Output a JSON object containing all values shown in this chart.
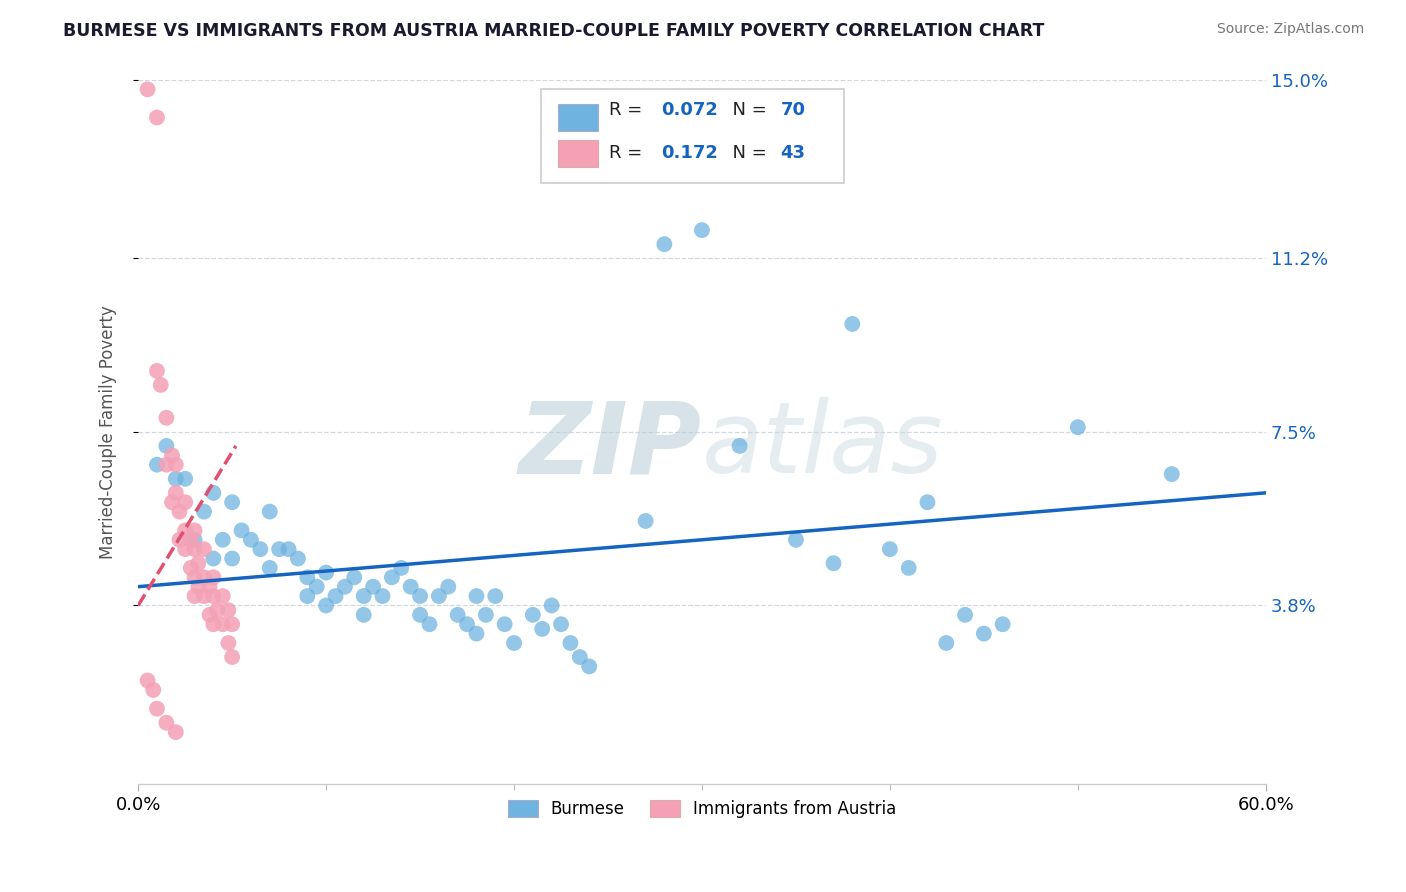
{
  "title": "BURMESE VS IMMIGRANTS FROM AUSTRIA MARRIED-COUPLE FAMILY POVERTY CORRELATION CHART",
  "source": "Source: ZipAtlas.com",
  "ylabel": "Married-Couple Family Poverty",
  "xlim": [
    0.0,
    0.6
  ],
  "ylim": [
    0.0,
    0.15
  ],
  "xtick_vals": [
    0.0,
    0.6
  ],
  "xtick_labels": [
    "0.0%",
    "60.0%"
  ],
  "ytick_vals": [
    0.038,
    0.075,
    0.112,
    0.15
  ],
  "ytick_labels": [
    "3.8%",
    "7.5%",
    "11.2%",
    "15.0%"
  ],
  "legend1_label": "Burmese",
  "legend2_label": "Immigrants from Austria",
  "R1": "0.072",
  "N1": "70",
  "R2": "0.172",
  "N2": "43",
  "blue_color": "#6fb3e0",
  "pink_color": "#f4a0b5",
  "trend_blue": "#1565c0",
  "trend_pink": "#e05070",
  "watermark_color": "#d0dde8",
  "blue_dots": [
    [
      0.01,
      0.068
    ],
    [
      0.015,
      0.072
    ],
    [
      0.02,
      0.065
    ],
    [
      0.025,
      0.065
    ],
    [
      0.03,
      0.052
    ],
    [
      0.035,
      0.058
    ],
    [
      0.04,
      0.062
    ],
    [
      0.04,
      0.048
    ],
    [
      0.045,
      0.052
    ],
    [
      0.05,
      0.06
    ],
    [
      0.05,
      0.048
    ],
    [
      0.055,
      0.054
    ],
    [
      0.06,
      0.052
    ],
    [
      0.065,
      0.05
    ],
    [
      0.07,
      0.058
    ],
    [
      0.07,
      0.046
    ],
    [
      0.075,
      0.05
    ],
    [
      0.08,
      0.05
    ],
    [
      0.085,
      0.048
    ],
    [
      0.09,
      0.044
    ],
    [
      0.09,
      0.04
    ],
    [
      0.095,
      0.042
    ],
    [
      0.1,
      0.045
    ],
    [
      0.1,
      0.038
    ],
    [
      0.105,
      0.04
    ],
    [
      0.11,
      0.042
    ],
    [
      0.115,
      0.044
    ],
    [
      0.12,
      0.04
    ],
    [
      0.12,
      0.036
    ],
    [
      0.125,
      0.042
    ],
    [
      0.13,
      0.04
    ],
    [
      0.135,
      0.044
    ],
    [
      0.14,
      0.046
    ],
    [
      0.145,
      0.042
    ],
    [
      0.15,
      0.04
    ],
    [
      0.15,
      0.036
    ],
    [
      0.155,
      0.034
    ],
    [
      0.16,
      0.04
    ],
    [
      0.165,
      0.042
    ],
    [
      0.17,
      0.036
    ],
    [
      0.175,
      0.034
    ],
    [
      0.18,
      0.04
    ],
    [
      0.18,
      0.032
    ],
    [
      0.185,
      0.036
    ],
    [
      0.19,
      0.04
    ],
    [
      0.195,
      0.034
    ],
    [
      0.2,
      0.03
    ],
    [
      0.21,
      0.036
    ],
    [
      0.215,
      0.033
    ],
    [
      0.22,
      0.038
    ],
    [
      0.225,
      0.034
    ],
    [
      0.23,
      0.03
    ],
    [
      0.235,
      0.027
    ],
    [
      0.24,
      0.025
    ],
    [
      0.27,
      0.056
    ],
    [
      0.28,
      0.115
    ],
    [
      0.3,
      0.118
    ],
    [
      0.32,
      0.072
    ],
    [
      0.35,
      0.052
    ],
    [
      0.37,
      0.047
    ],
    [
      0.38,
      0.098
    ],
    [
      0.4,
      0.05
    ],
    [
      0.41,
      0.046
    ],
    [
      0.42,
      0.06
    ],
    [
      0.43,
      0.03
    ],
    [
      0.44,
      0.036
    ],
    [
      0.45,
      0.032
    ],
    [
      0.46,
      0.034
    ],
    [
      0.5,
      0.076
    ],
    [
      0.55,
      0.066
    ]
  ],
  "pink_dots": [
    [
      0.005,
      0.148
    ],
    [
      0.01,
      0.142
    ],
    [
      0.01,
      0.088
    ],
    [
      0.012,
      0.085
    ],
    [
      0.015,
      0.078
    ],
    [
      0.015,
      0.068
    ],
    [
      0.018,
      0.07
    ],
    [
      0.018,
      0.06
    ],
    [
      0.02,
      0.068
    ],
    [
      0.02,
      0.062
    ],
    [
      0.022,
      0.058
    ],
    [
      0.022,
      0.052
    ],
    [
      0.025,
      0.06
    ],
    [
      0.025,
      0.054
    ],
    [
      0.025,
      0.05
    ],
    [
      0.028,
      0.052
    ],
    [
      0.028,
      0.046
    ],
    [
      0.03,
      0.054
    ],
    [
      0.03,
      0.05
    ],
    [
      0.03,
      0.044
    ],
    [
      0.03,
      0.04
    ],
    [
      0.032,
      0.047
    ],
    [
      0.032,
      0.042
    ],
    [
      0.035,
      0.05
    ],
    [
      0.035,
      0.044
    ],
    [
      0.035,
      0.04
    ],
    [
      0.038,
      0.042
    ],
    [
      0.038,
      0.036
    ],
    [
      0.04,
      0.044
    ],
    [
      0.04,
      0.04
    ],
    [
      0.04,
      0.034
    ],
    [
      0.042,
      0.037
    ],
    [
      0.045,
      0.04
    ],
    [
      0.045,
      0.034
    ],
    [
      0.048,
      0.037
    ],
    [
      0.048,
      0.03
    ],
    [
      0.05,
      0.034
    ],
    [
      0.05,
      0.027
    ],
    [
      0.005,
      0.022
    ],
    [
      0.008,
      0.02
    ],
    [
      0.01,
      0.016
    ],
    [
      0.015,
      0.013
    ],
    [
      0.02,
      0.011
    ]
  ],
  "blue_trend_x": [
    0.0,
    0.6
  ],
  "blue_trend_y": [
    0.042,
    0.062
  ],
  "pink_trend_x": [
    0.0,
    0.052
  ],
  "pink_trend_y": [
    0.038,
    0.072
  ]
}
